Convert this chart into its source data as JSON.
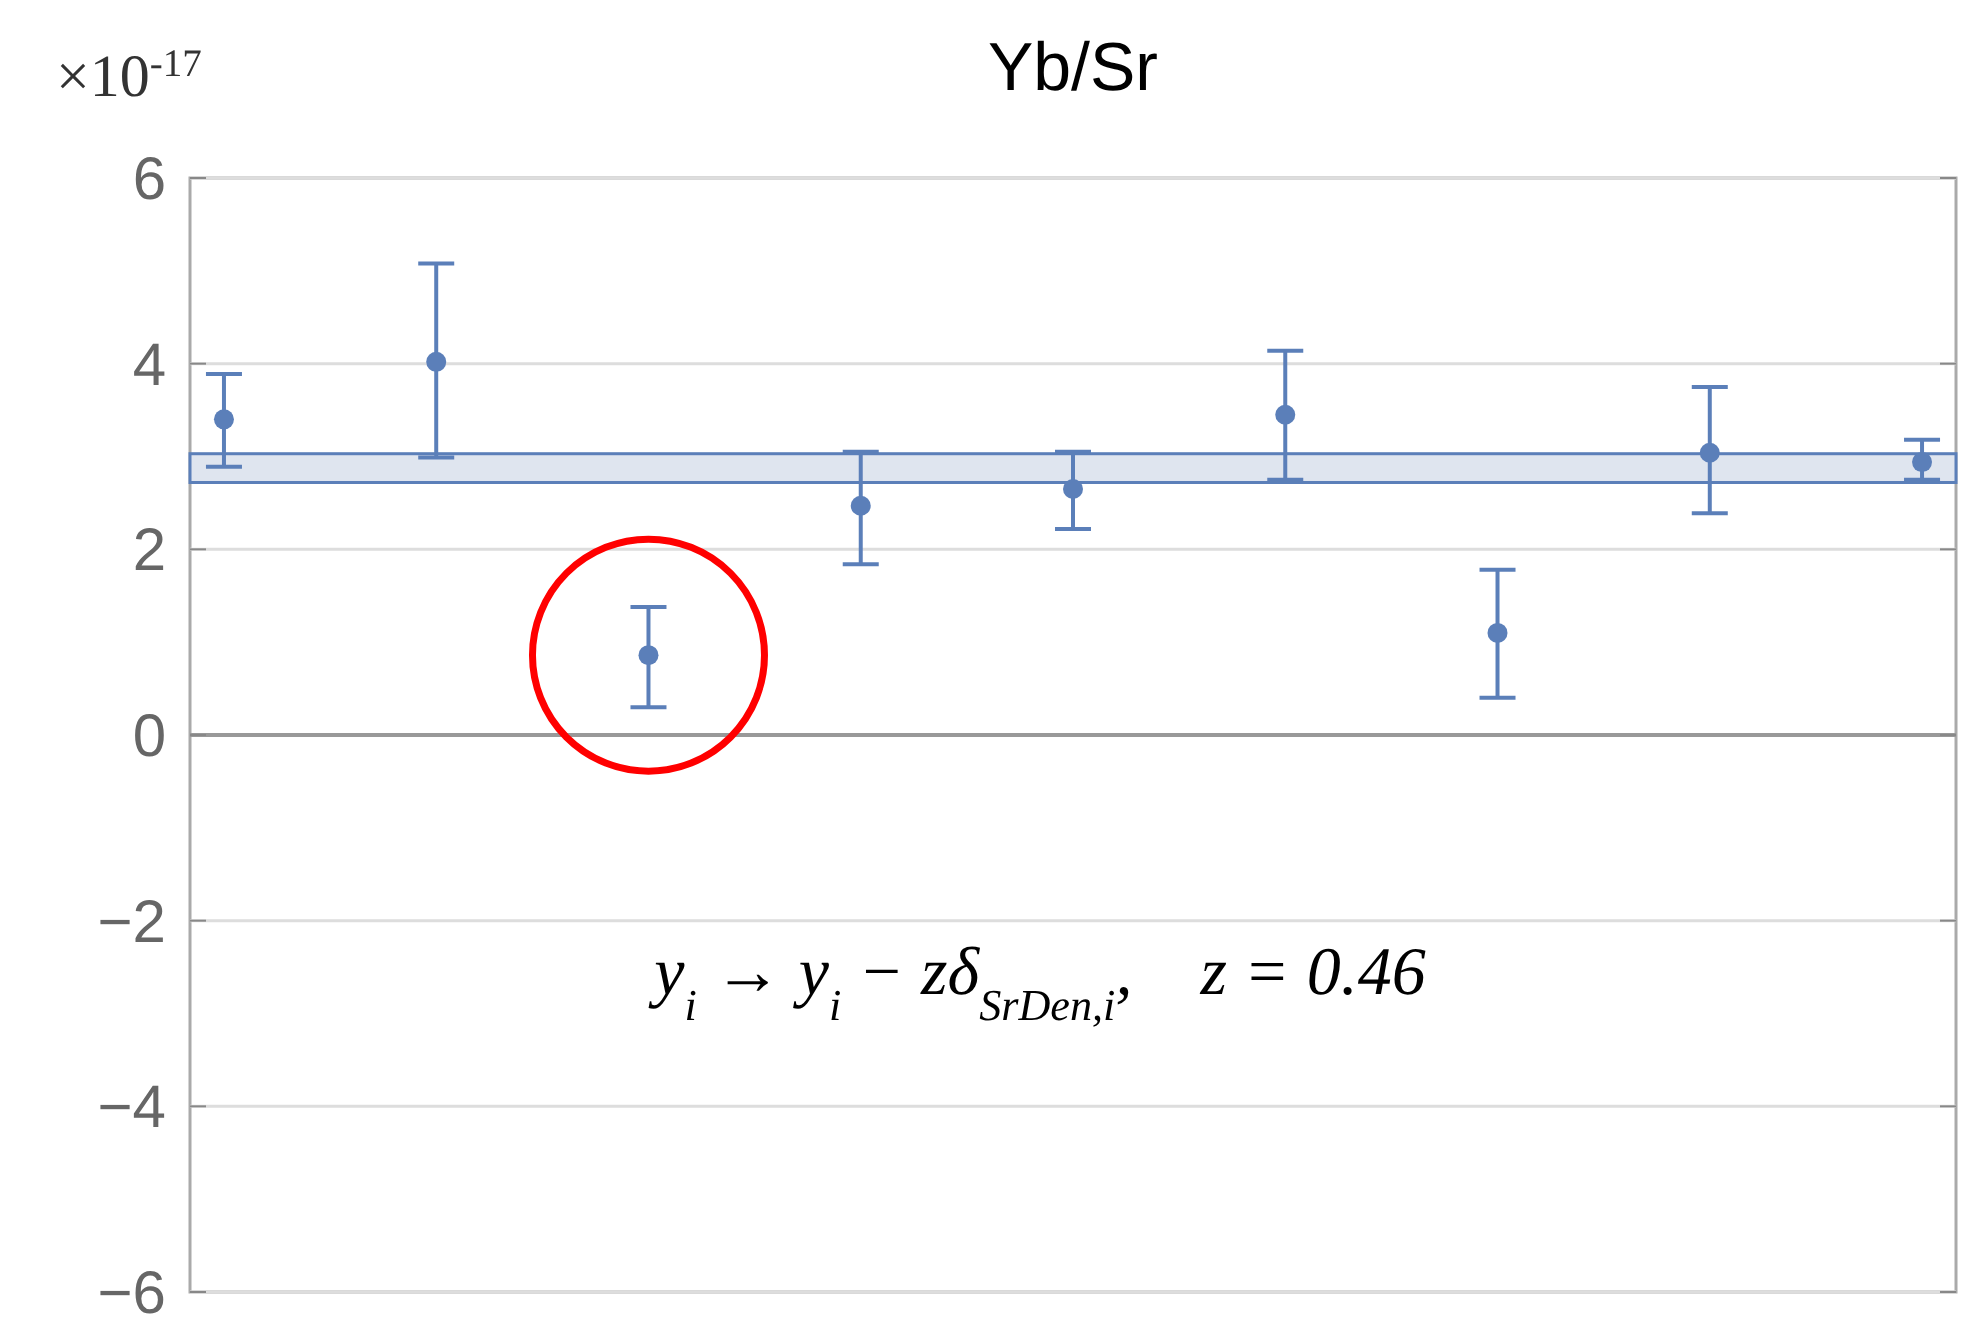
{
  "chart_data": {
    "type": "scatter",
    "title": "Yb/Sr",
    "ylabel": "×10$^{-17}$",
    "categories": [
      null,
      null,
      null,
      null,
      null,
      null,
      null,
      null,
      null
    ],
    "series": [
      {
        "color": "#5b7fb9",
        "values": [
          3.4,
          4.02,
          0.86,
          2.47,
          2.65,
          3.45,
          1.1,
          3.04,
          2.94
        ],
        "errors": [
          [
            2.89,
            3.89
          ],
          [
            2.99,
            5.08
          ],
          [
            0.3,
            1.38
          ],
          [
            1.84,
            3.05
          ],
          [
            2.22,
            3.05
          ],
          [
            2.75,
            4.14
          ],
          [
            0.4,
            1.78
          ],
          [
            2.39,
            3.75
          ],
          [
            2.75,
            3.18
          ]
        ]
      }
    ],
    "bands": [
      {
        "axis": "y",
        "from": 2.72,
        "to": 3.03,
        "color": "#dfe5ef"
      }
    ],
    "ylim": [
      -6,
      6
    ],
    "yticks": [
      -6,
      -4,
      -2,
      0,
      2,
      4,
      6
    ],
    "grid": "y",
    "marker": "circle",
    "annotations": [
      "y$_{i}$ → y$_{i}$ − zδ$_{SrDen,i}$,    z = 0.46"
    ]
  }
}
